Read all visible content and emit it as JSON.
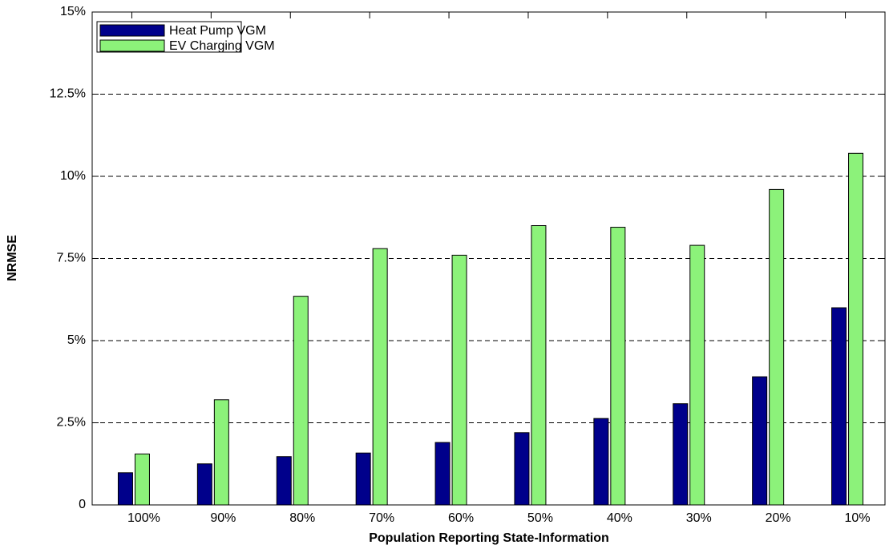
{
  "chart_data": {
    "type": "bar",
    "x_label": "Population Reporting State-Information",
    "y_label": "NRMSE",
    "categories": [
      "100%",
      "90%",
      "80%",
      "70%",
      "60%",
      "50%",
      "40%",
      "30%",
      "20%",
      "10%"
    ],
    "series": [
      {
        "name": "Heat Pump VGM",
        "color": "#00008b",
        "values": [
          0.98,
          1.25,
          1.47,
          1.58,
          1.9,
          2.2,
          2.63,
          3.08,
          3.9,
          6.0
        ]
      },
      {
        "name": "EV Charging VGM",
        "color": "#8cf27a",
        "values": [
          1.55,
          3.2,
          6.35,
          7.8,
          7.6,
          8.5,
          8.45,
          7.9,
          9.6,
          10.7
        ]
      }
    ],
    "ylim": [
      0,
      15
    ],
    "yticks": [
      0,
      {
        "value": 2.5,
        "label": "2.5%"
      },
      {
        "value": 5,
        "label": "5%"
      },
      {
        "value": 7.5,
        "label": "7.5%"
      },
      {
        "value": 10,
        "label": "10%"
      },
      {
        "value": 12.5,
        "label": "12.5%"
      },
      {
        "value": 15,
        "label": "15%"
      }
    ],
    "grid": true,
    "legend": "upper-left"
  }
}
